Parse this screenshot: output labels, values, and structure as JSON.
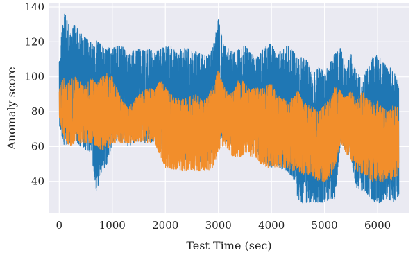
{
  "chart_data": {
    "type": "line",
    "title": "",
    "xlabel": "Test Time (sec)",
    "ylabel": "Anomaly score",
    "xlim": [
      -200,
      6600
    ],
    "ylim": [
      22,
      142
    ],
    "xticks": [
      0,
      1000,
      2000,
      3000,
      4000,
      5000,
      6000
    ],
    "yticks": [
      40,
      60,
      80,
      100,
      120,
      140
    ],
    "grid": true,
    "legend": "none",
    "background": "#eaeaf2",
    "series": [
      {
        "color": "#1f77b4",
        "envelope": {
          "x": [
            0,
            100,
            200,
            300,
            400,
            500,
            600,
            700,
            800,
            900,
            1000,
            1100,
            1200,
            1300,
            1400,
            1500,
            1600,
            1700,
            1800,
            1900,
            2000,
            2100,
            2200,
            2300,
            2400,
            2500,
            2600,
            2700,
            2800,
            2900,
            3000,
            3100,
            3200,
            3300,
            3400,
            3500,
            3600,
            3700,
            3800,
            3900,
            4000,
            4100,
            4200,
            4300,
            4400,
            4500,
            4600,
            4700,
            4800,
            4900,
            5000,
            5100,
            5200,
            5300,
            5400,
            5500,
            5600,
            5700,
            5800,
            5900,
            6000,
            6100,
            6200,
            6300,
            6400
          ],
          "upper": [
            115,
            137,
            128,
            130,
            125,
            122,
            120,
            121,
            118,
            117,
            116,
            118,
            117,
            112,
            115,
            116,
            115,
            116,
            114,
            116,
            117,
            118,
            114,
            116,
            117,
            115,
            114,
            113,
            112,
            117,
            133,
            118,
            116,
            114,
            116,
            118,
            114,
            110,
            114,
            118,
            119,
            112,
            116,
            118,
            115,
            110,
            112,
            108,
            102,
            106,
            102,
            108,
            113,
            118,
            104,
            114,
            102,
            101,
            104,
            111,
            113,
            108,
            106,
            104,
            96
          ],
          "lower": [
            72,
            60,
            62,
            64,
            60,
            58,
            56,
            34,
            45,
            50,
            62,
            64,
            62,
            60,
            62,
            63,
            62,
            63,
            62,
            58,
            60,
            58,
            56,
            55,
            52,
            54,
            52,
            50,
            52,
            58,
            64,
            64,
            62,
            60,
            58,
            62,
            60,
            60,
            52,
            50,
            48,
            50,
            46,
            46,
            42,
            30,
            27,
            28,
            28,
            28,
            28,
            30,
            30,
            62,
            58,
            52,
            36,
            34,
            33,
            29,
            27,
            29,
            30,
            28,
            32
          ]
        }
      },
      {
        "color": "#f28e2b",
        "envelope": {
          "x": [
            0,
            100,
            200,
            300,
            400,
            500,
            600,
            700,
            800,
            900,
            1000,
            1100,
            1200,
            1300,
            1400,
            1500,
            1600,
            1700,
            1800,
            1900,
            2000,
            2100,
            2200,
            2300,
            2400,
            2500,
            2600,
            2700,
            2800,
            2900,
            3000,
            3100,
            3200,
            3300,
            3400,
            3500,
            3600,
            3700,
            3800,
            3900,
            4000,
            4100,
            4200,
            4300,
            4400,
            4500,
            4600,
            4700,
            4800,
            4900,
            5000,
            5100,
            5200,
            5300,
            5400,
            5500,
            5600,
            5700,
            5800,
            5900,
            6000,
            6100,
            6200,
            6300,
            6400
          ],
          "upper": [
            94,
            100,
            98,
            100,
            97,
            95,
            100,
            96,
            100,
            102,
            100,
            92,
            86,
            82,
            86,
            90,
            92,
            94,
            92,
            98,
            94,
            90,
            88,
            87,
            88,
            89,
            90,
            86,
            88,
            96,
            104,
            95,
            90,
            92,
            100,
            96,
            92,
            94,
            93,
            95,
            96,
            90,
            88,
            86,
            88,
            92,
            86,
            84,
            82,
            80,
            84,
            88,
            94,
            92,
            88,
            92,
            86,
            92,
            88,
            85,
            86,
            82,
            80,
            84,
            82
          ],
          "lower": [
            76,
            64,
            60,
            62,
            62,
            62,
            62,
            60,
            58,
            58,
            62,
            62,
            62,
            62,
            62,
            63,
            62,
            62,
            62,
            55,
            48,
            47,
            47,
            46,
            46,
            46,
            46,
            46,
            46,
            47,
            58,
            60,
            56,
            54,
            54,
            56,
            54,
            54,
            50,
            48,
            48,
            48,
            48,
            48,
            46,
            46,
            44,
            44,
            42,
            40,
            40,
            42,
            48,
            62,
            56,
            52,
            46,
            44,
            42,
            40,
            40,
            40,
            42,
            40,
            44
          ]
        }
      }
    ]
  }
}
